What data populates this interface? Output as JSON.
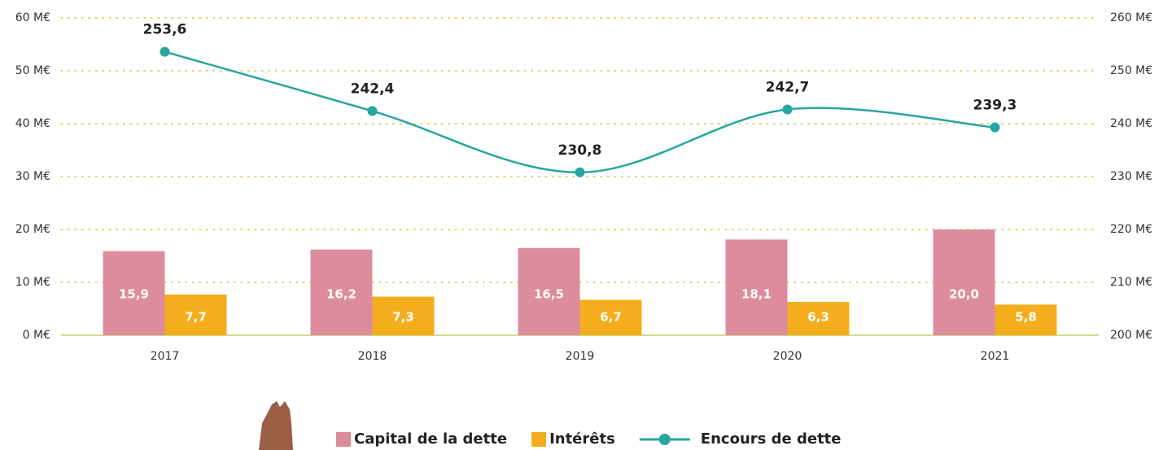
{
  "chart_data": {
    "type": "combo",
    "categories": [
      "2017",
      "2018",
      "2019",
      "2020",
      "2021"
    ],
    "series": [
      {
        "name": "Capital de la dette",
        "type": "bar",
        "color": "#dc8c9c",
        "values": [
          15.9,
          16.2,
          16.5,
          18.1,
          20.0
        ],
        "value_labels": [
          "15,9",
          "16,2",
          "16,5",
          "18,1",
          "20,0"
        ]
      },
      {
        "name": "Intérêts",
        "type": "bar",
        "color": "#f4ae1d",
        "values": [
          7.7,
          7.3,
          6.7,
          6.3,
          5.8
        ],
        "value_labels": [
          "7,7",
          "7,3",
          "6,7",
          "6,3",
          "5,8"
        ]
      },
      {
        "name": "Encours de dette",
        "type": "line",
        "axis": "y2",
        "color": "#26a6a0",
        "values": [
          253.6,
          242.4,
          230.8,
          242.7,
          239.3
        ],
        "value_labels": [
          "253,6",
          "242,4",
          "230,8",
          "242,7",
          "239,3"
        ]
      }
    ],
    "ylim": [
      0,
      60
    ],
    "yticks": [
      {
        "value": 0,
        "label": "0 M€"
      },
      {
        "value": 10,
        "label": "10 M€"
      },
      {
        "value": 20,
        "label": "20 M€"
      },
      {
        "value": 30,
        "label": "30 M€"
      },
      {
        "value": 40,
        "label": "40 M€"
      },
      {
        "value": 50,
        "label": "50 M€"
      },
      {
        "value": 60,
        "label": "60 M€"
      }
    ],
    "y2lim": [
      200,
      260
    ],
    "y2ticks": [
      {
        "value": 200,
        "label": "200 M€"
      },
      {
        "value": 210,
        "label": "210 M€"
      },
      {
        "value": 220,
        "label": "220 M€"
      },
      {
        "value": 230,
        "label": "230 M€"
      },
      {
        "value": 240,
        "label": "240 M€"
      },
      {
        "value": 250,
        "label": "250 M€"
      },
      {
        "value": 260,
        "label": "260 M€"
      }
    ],
    "grid": true
  }
}
